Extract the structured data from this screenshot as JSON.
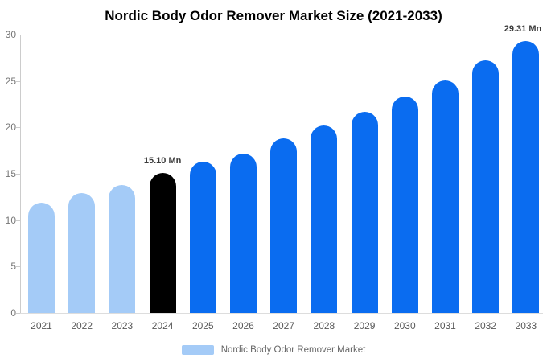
{
  "title": "Nordic Body Odor Remover Market Size (2021-2033)",
  "legend": {
    "label": "Nordic Body Odor Remover Market",
    "swatch_color": "#a4cbf7"
  },
  "colors": {
    "historical_bar": "#a4cbf7",
    "current_year_bar": "#000000",
    "forecast_bar": "#0a6cf0",
    "axis_line": "#cccccc",
    "tick_text": "#777777",
    "xtick_text": "#595959",
    "data_label_text": "#3a3a3a",
    "background": "#ffffff"
  },
  "chart_data": {
    "type": "bar",
    "title": "Nordic Body Odor Remover Market Size (2021-2033)",
    "xlabel": "",
    "ylabel": "",
    "categories": [
      "2021",
      "2022",
      "2023",
      "2024",
      "2025",
      "2026",
      "2027",
      "2028",
      "2029",
      "2030",
      "2031",
      "2032",
      "2033"
    ],
    "values": [
      11.9,
      12.9,
      13.8,
      15.1,
      16.3,
      17.2,
      18.8,
      20.2,
      21.7,
      23.3,
      25.1,
      27.2,
      29.31
    ],
    "bar_roles": [
      "historical",
      "historical",
      "historical",
      "current",
      "forecast",
      "forecast",
      "forecast",
      "forecast",
      "forecast",
      "forecast",
      "forecast",
      "forecast",
      "forecast"
    ],
    "unit": "Mn",
    "ylim": [
      0,
      30
    ],
    "yticks": [
      0,
      5,
      10,
      15,
      20,
      25,
      30
    ],
    "grid": false,
    "legend_position": "bottom",
    "legend_entries": [
      "Nordic Body Odor Remover Market"
    ],
    "annotations": [
      {
        "category": "2024",
        "text": "15.10 Mn"
      },
      {
        "category": "2033",
        "text": "29.31 Mn"
      }
    ]
  }
}
